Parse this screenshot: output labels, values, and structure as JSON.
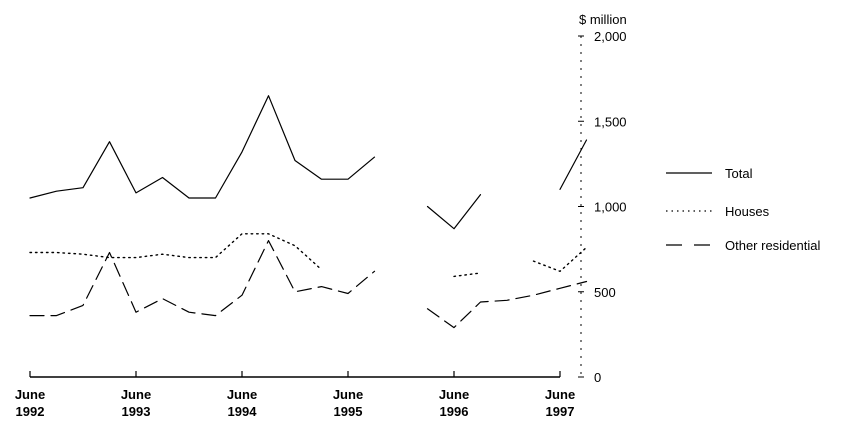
{
  "chart_data": {
    "type": "line",
    "unit_label": "$ million",
    "ylim": [
      0,
      2000
    ],
    "y_ticks": [
      {
        "value": 0,
        "label": "0"
      },
      {
        "value": 500,
        "label": "500"
      },
      {
        "value": 1000,
        "label": "1,000"
      },
      {
        "value": 1500,
        "label": "1,500"
      },
      {
        "value": 2000,
        "label": "2,000"
      }
    ],
    "x_ticks": [
      {
        "value": 0,
        "line1": "June",
        "line2": "1992"
      },
      {
        "value": 4,
        "line1": "June",
        "line2": "1993"
      },
      {
        "value": 8,
        "line1": "June",
        "line2": "1994"
      },
      {
        "value": 12,
        "line1": "June",
        "line2": "1995"
      },
      {
        "value": 16,
        "line1": "June",
        "line2": "1996"
      },
      {
        "value": 20,
        "line1": "June",
        "line2": "1997"
      }
    ],
    "series": [
      {
        "name": "Total",
        "style": "solid",
        "color": "#000000",
        "values": [
          1050,
          1090,
          1110,
          1380,
          1080,
          1170,
          1050,
          1050,
          1320,
          1650,
          1270,
          1160,
          1160,
          1290,
          null,
          1000,
          870,
          1070,
          null,
          null,
          1100,
          1390
        ]
      },
      {
        "name": "Houses",
        "style": "dotted",
        "color": "#000000",
        "values": [
          730,
          730,
          720,
          700,
          700,
          720,
          700,
          700,
          840,
          840,
          770,
          630,
          null,
          null,
          null,
          null,
          590,
          610,
          null,
          680,
          620,
          760
        ]
      },
      {
        "name": "Other residential",
        "style": "dashed",
        "color": "#000000",
        "values": [
          360,
          360,
          420,
          730,
          380,
          460,
          380,
          360,
          480,
          800,
          500,
          530,
          490,
          620,
          null,
          400,
          290,
          440,
          450,
          480,
          520,
          560
        ]
      }
    ]
  }
}
